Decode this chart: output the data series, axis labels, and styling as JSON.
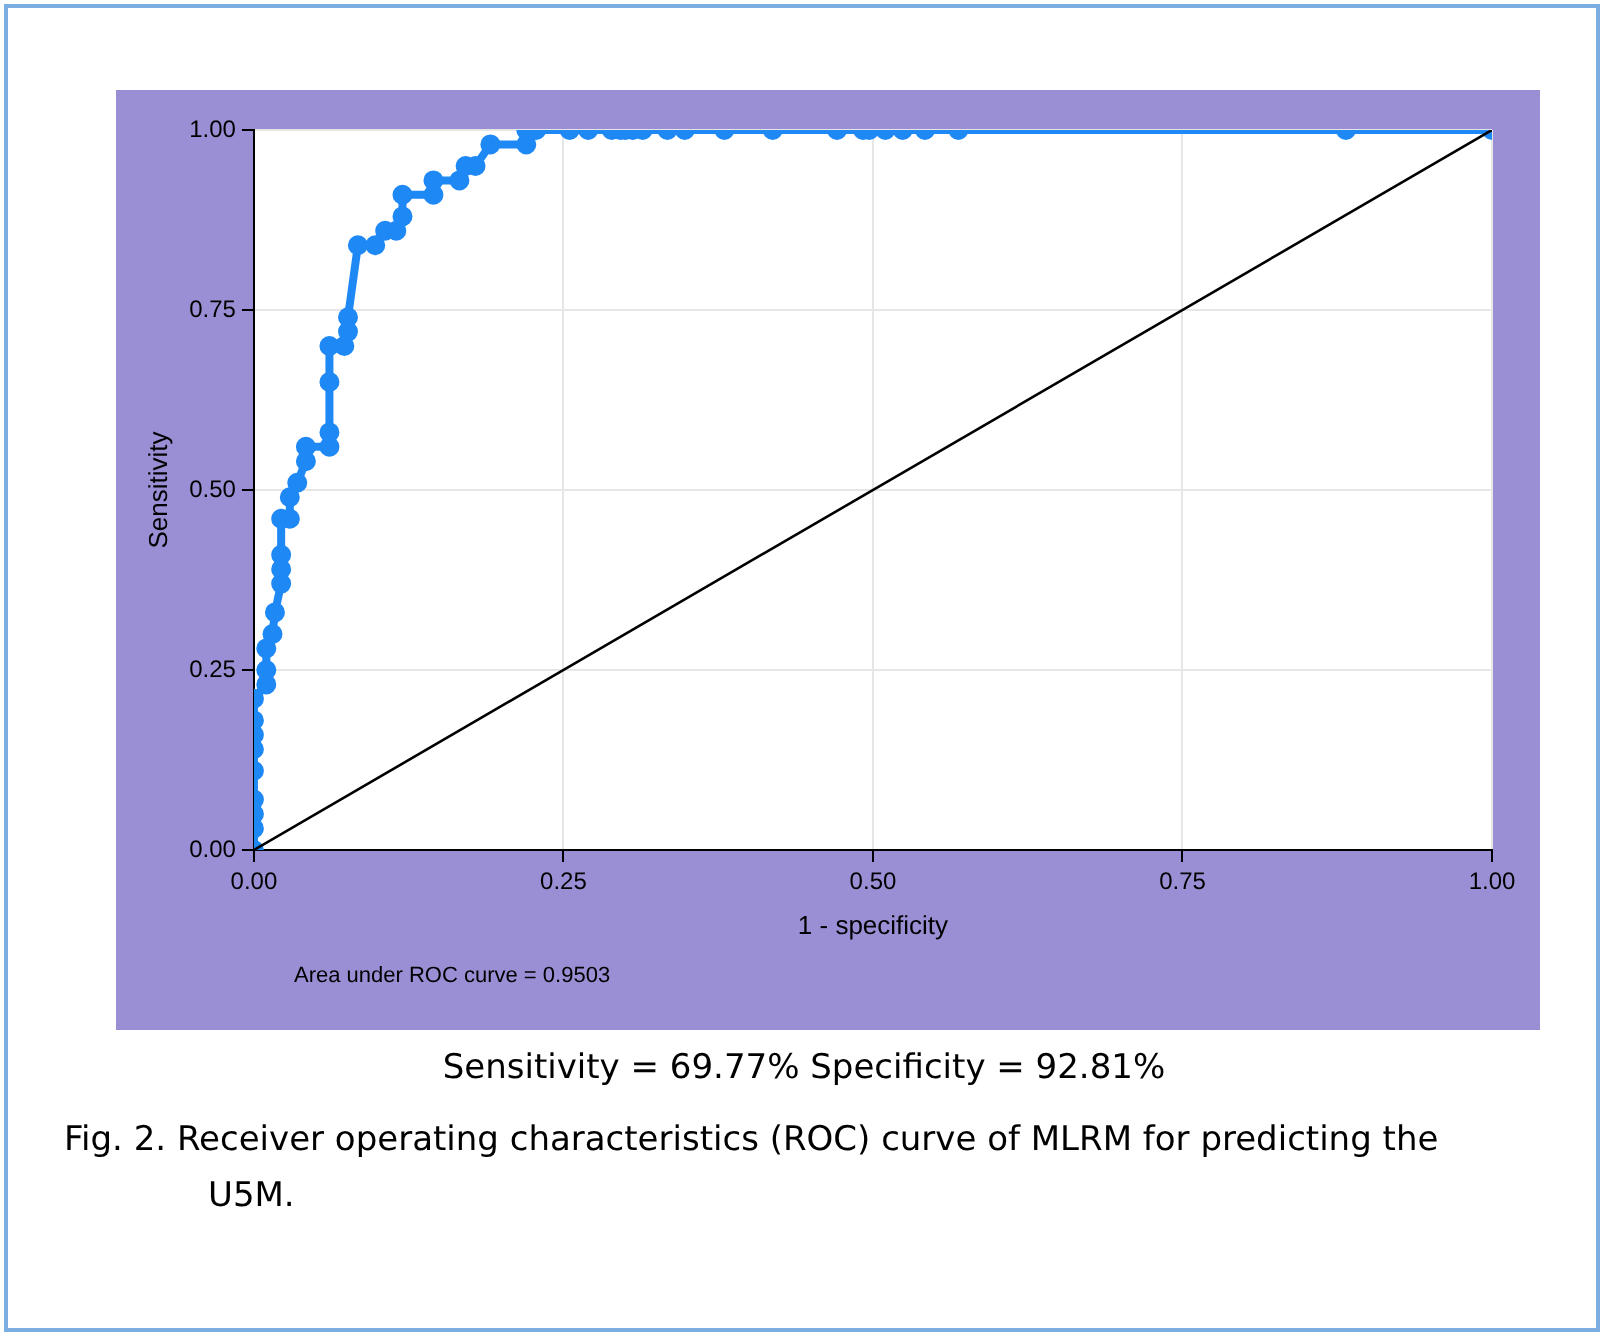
{
  "chart_data": {
    "type": "line",
    "xlabel": "1 - specificity",
    "ylabel": "Sensitivity",
    "annotations": [
      "Area under ROC curve = 0.9503",
      "Sensitivity = 69.77% Specificity = 92.81%",
      "Fig. 2. Receiver operating characteristics (ROC) curve of MLRM for predicting the U5M."
    ],
    "xlim": [
      0,
      1
    ],
    "ylim": [
      0,
      1
    ],
    "xticks": [
      {
        "value": 0,
        "label": "0.00"
      },
      {
        "value": 0.25,
        "label": "0.25"
      },
      {
        "value": 0.5,
        "label": "0.50"
      },
      {
        "value": 0.75,
        "label": "0.75"
      },
      {
        "value": 1,
        "label": "1.00"
      }
    ],
    "yticks": [
      {
        "value": 0,
        "label": "0.00"
      },
      {
        "value": 0.25,
        "label": "0.25"
      },
      {
        "value": 0.5,
        "label": "0.50"
      },
      {
        "value": 0.75,
        "label": "0.75"
      },
      {
        "value": 1,
        "label": "1.00"
      }
    ],
    "grid": true,
    "legend": false,
    "line_style": "solid",
    "series": [
      {
        "color": "#1e88f5",
        "marker": "circle",
        "x": [
          0,
          0,
          0,
          0,
          0,
          0,
          0,
          0,
          0,
          0.01,
          0.01,
          0.01,
          0.015,
          0.017,
          0.022,
          0.022,
          0.022,
          0.022,
          0.029,
          0.029,
          0.035,
          0.042,
          0.042,
          0.061,
          0.061,
          0.061,
          0.061,
          0.073,
          0.076,
          0.076,
          0.084,
          0.098,
          0.106,
          0.115,
          0.12,
          0.12,
          0.145,
          0.145,
          0.166,
          0.171,
          0.179,
          0.191,
          0.22,
          0.22,
          0.228,
          0.255,
          0.27,
          0.289,
          0.296,
          0.3,
          0.306,
          0.314,
          0.334,
          0.348,
          0.38,
          0.419,
          0.471,
          0.492,
          0.497,
          0.51,
          0.524,
          0.542,
          0.569,
          0.882,
          1
        ],
        "values": [
          0,
          0.03,
          0.05,
          0.07,
          0.11,
          0.14,
          0.16,
          0.18,
          0.21,
          0.23,
          0.25,
          0.28,
          0.3,
          0.33,
          0.37,
          0.39,
          0.41,
          0.46,
          0.46,
          0.49,
          0.51,
          0.54,
          0.56,
          0.56,
          0.58,
          0.65,
          0.7,
          0.7,
          0.72,
          0.74,
          0.84,
          0.84,
          0.86,
          0.86,
          0.88,
          0.91,
          0.91,
          0.93,
          0.93,
          0.95,
          0.95,
          0.98,
          0.98,
          1,
          1,
          1,
          1,
          1,
          1,
          1,
          1,
          1,
          1,
          1,
          1,
          1,
          1,
          1,
          1,
          1,
          1,
          1,
          1,
          1,
          1
        ]
      },
      {
        "color": "#000000",
        "marker": "none",
        "x": [
          0,
          1
        ],
        "values": [
          0,
          1
        ]
      }
    ]
  }
}
